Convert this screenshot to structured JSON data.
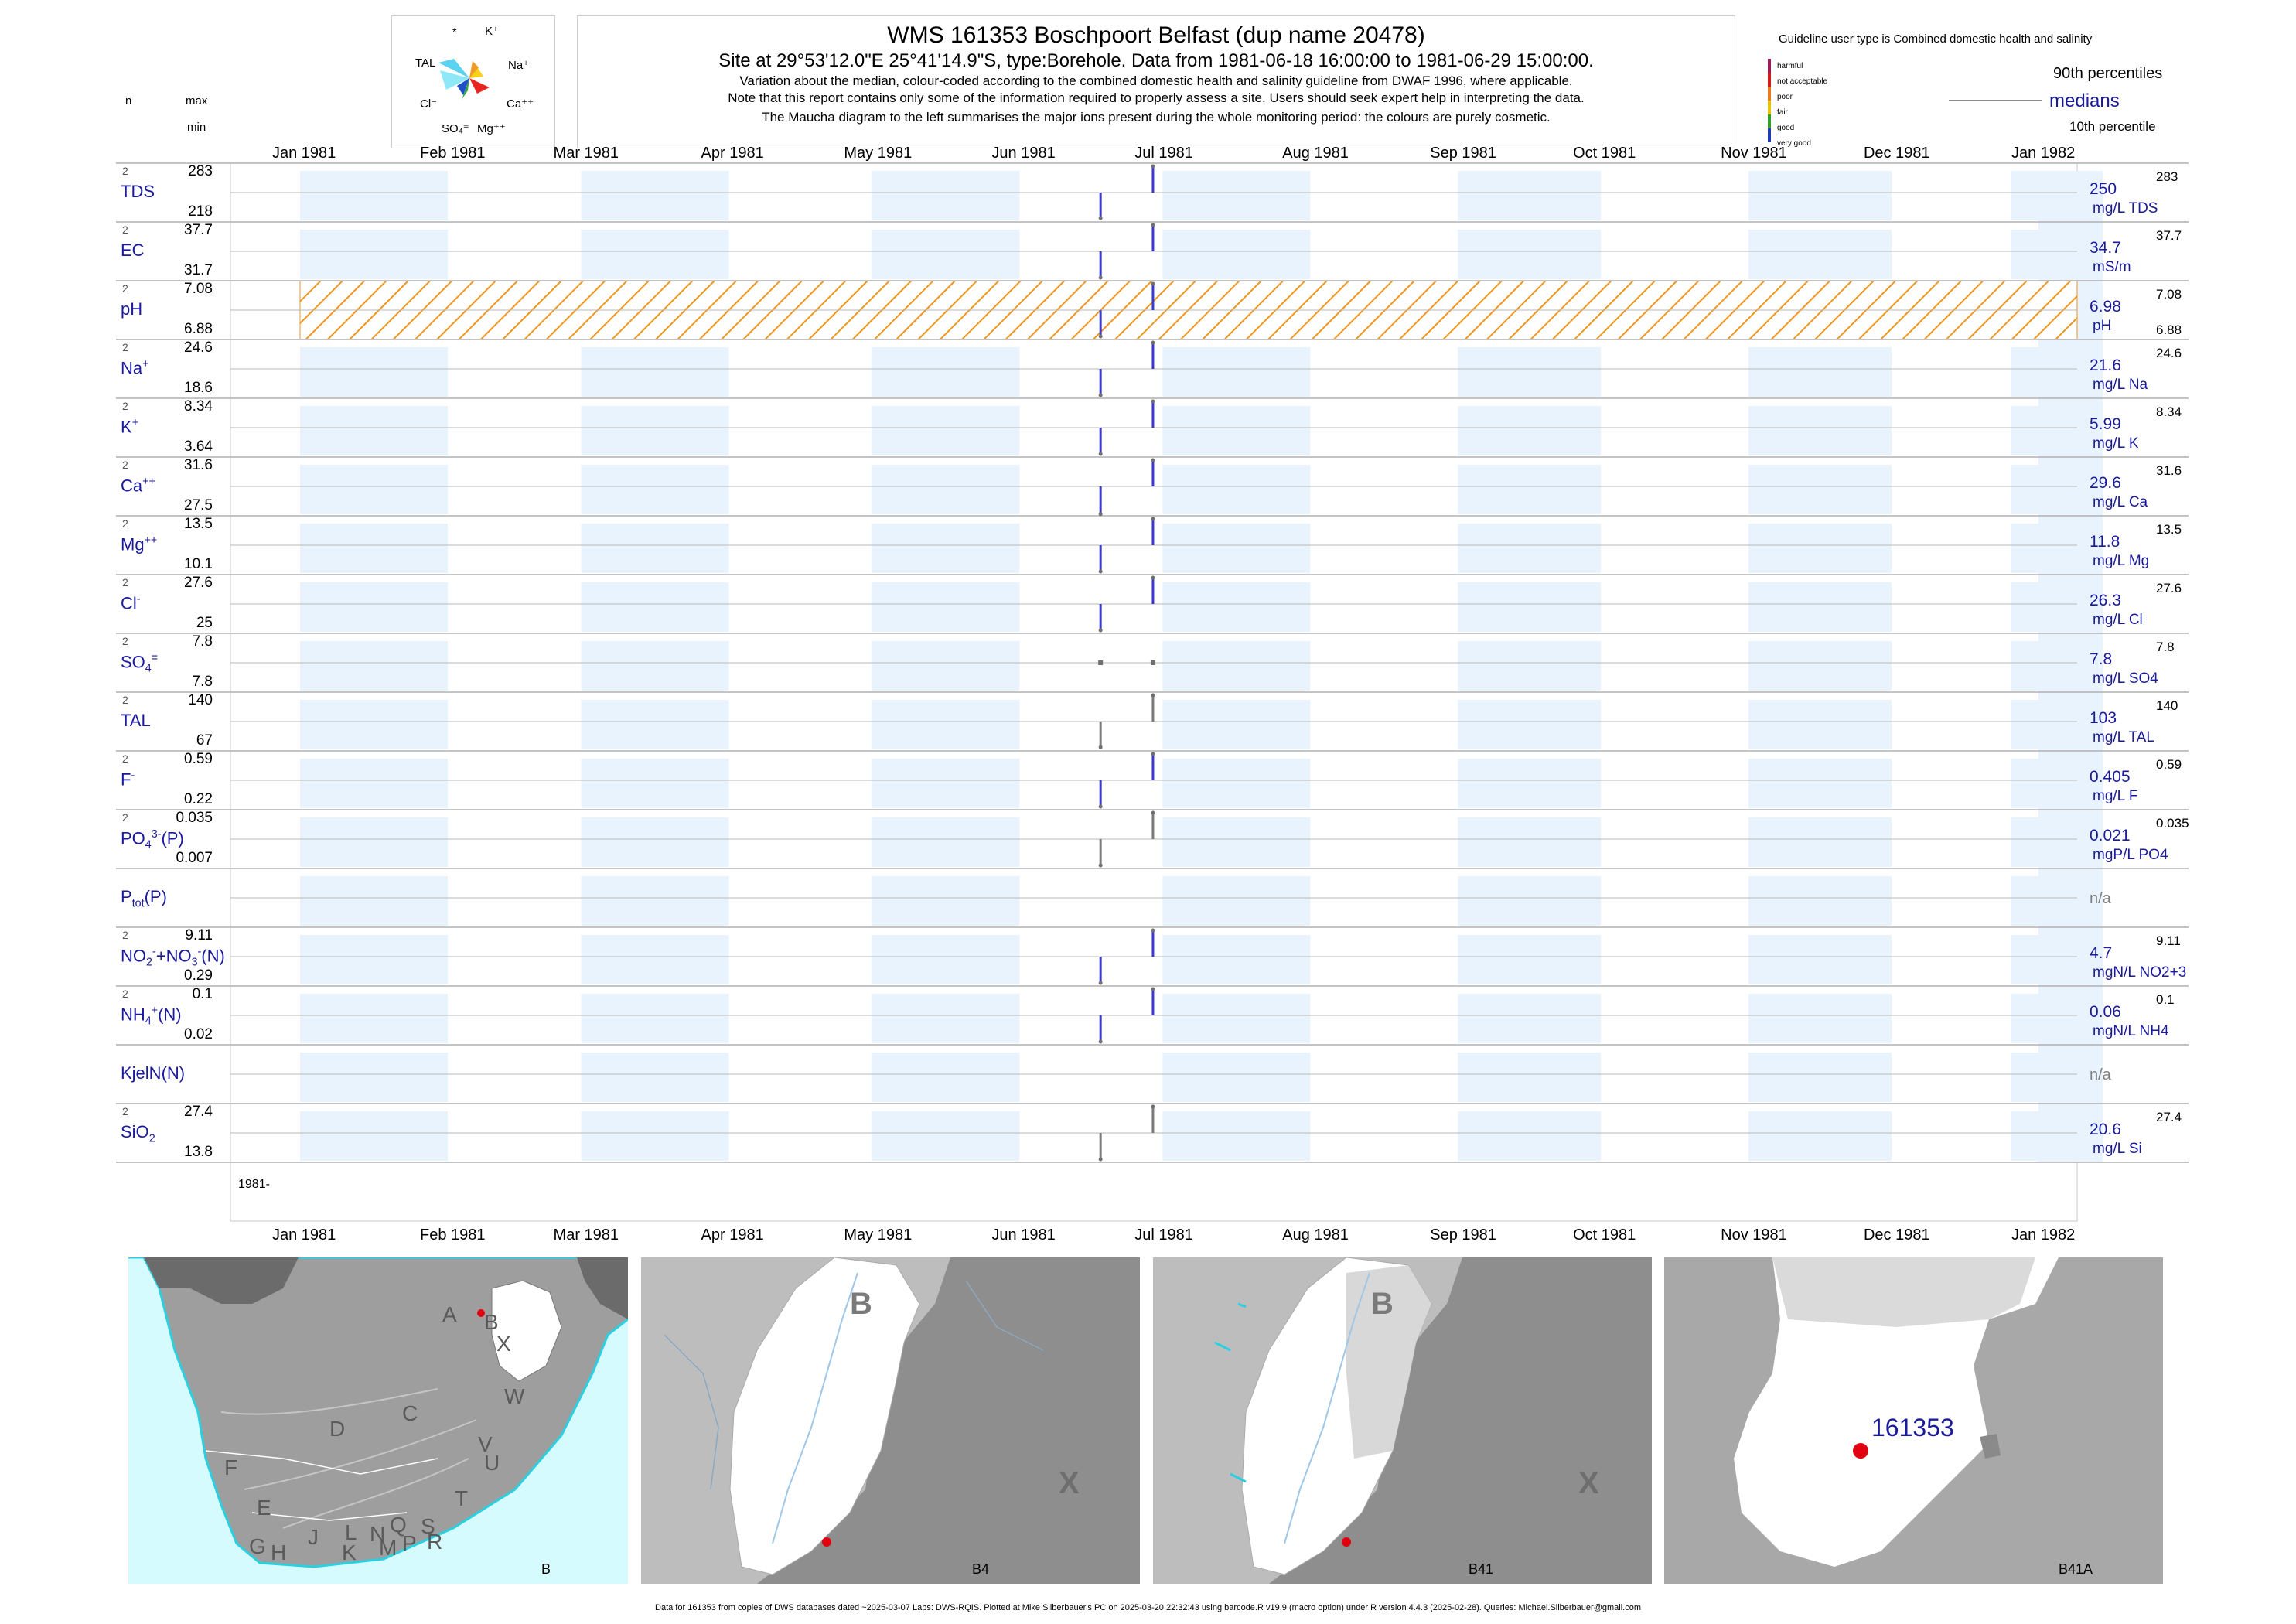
{
  "header": {
    "title": "WMS 161353  Boschpoort Belfast (dup name 20478)",
    "subtitle": "Site at 29°53'12.0\"E 25°41'14.9\"S, type:Borehole.  Data from 1981-06-18 16:00:00 to 1981-06-29 15:00:00.",
    "note1": "Variation about the median,  colour-coded according to the combined domestic health and salinity guideline from DWAF 1996, where applicable.",
    "note2": "Note that this report contains only some of the information required to properly assess a site. Users should seek expert help in interpreting the data.",
    "note3": "The Maucha diagram to the left summarises the major ions present during the whole monitoring period: the colours are purely cosmetic."
  },
  "left_header": {
    "n": "n",
    "max": "max",
    "min": "min"
  },
  "maucha": {
    "labels": {
      "star": "*",
      "k": "K⁺",
      "tal": "TAL",
      "na": "Na⁺",
      "cl": "Cl⁻",
      "ca": "Ca⁺⁺",
      "so4": "SO₄⁼",
      "mg": "Mg⁺⁺"
    }
  },
  "legend": {
    "guideline_title": "Guideline user type is Combined domestic health and salinity",
    "classes": [
      "harmful",
      "not acceptable",
      "poor",
      "fair",
      "good",
      "very good"
    ],
    "class_colors": [
      "#9b1d5e",
      "#d7191c",
      "#f07820",
      "#e6c600",
      "#33a02c",
      "#1f3bb3"
    ],
    "p90": "90th percentiles",
    "medians": "medians",
    "p10": "10th percentile"
  },
  "axis": {
    "months": [
      "Jan 1981",
      "Feb 1981",
      "Mar 1981",
      "Apr 1981",
      "May 1981",
      "Jun 1981",
      "Jul 1981",
      "Aug 1981",
      "Sep 1981",
      "Oct 1981",
      "Nov 1981",
      "Dec 1981",
      "Jan 1982"
    ],
    "year_label": "1981-"
  },
  "chart_data": {
    "type": "line",
    "x_range": [
      "1981-01-01",
      "1982-01-01"
    ],
    "sample_dates": [
      "1981-06-18",
      "1981-06-29"
    ],
    "series": [
      {
        "name": "TDS",
        "n": "2",
        "max": "283",
        "min": "218",
        "median": "250",
        "unit": "mg/L TDS",
        "values": [
          218,
          283
        ]
      },
      {
        "name": "EC",
        "n": "2",
        "max": "37.7",
        "min": "31.7",
        "median": "34.7",
        "unit": "mS/m",
        "values": [
          31.7,
          37.7
        ]
      },
      {
        "name": "pH",
        "n": "2",
        "max": "7.08",
        "min": "6.88",
        "median": "6.98",
        "unit": "pH",
        "values": [
          6.88,
          7.08
        ]
      },
      {
        "name": "Na",
        "n": "2",
        "max": "24.6",
        "min": "18.6",
        "median": "21.6",
        "unit": "mg/L Na",
        "values": [
          18.6,
          24.6
        ]
      },
      {
        "name": "K",
        "n": "2",
        "max": "8.34",
        "min": "3.64",
        "median": "5.99",
        "unit": "mg/L K",
        "values": [
          3.64,
          8.34
        ]
      },
      {
        "name": "Ca",
        "n": "2",
        "max": "31.6",
        "min": "27.5",
        "median": "29.6",
        "unit": "mg/L Ca",
        "values": [
          27.5,
          31.6
        ]
      },
      {
        "name": "Mg",
        "n": "2",
        "max": "13.5",
        "min": "10.1",
        "median": "11.8",
        "unit": "mg/L Mg",
        "values": [
          10.1,
          13.5
        ]
      },
      {
        "name": "Cl",
        "n": "2",
        "max": "27.6",
        "min": "25",
        "median": "26.3",
        "unit": "mg/L Cl",
        "values": [
          25,
          27.6
        ]
      },
      {
        "name": "SO4",
        "n": "2",
        "max": "7.8",
        "min": "7.8",
        "median": "7.8",
        "unit": "mg/L SO4",
        "values": [
          7.8,
          7.8
        ]
      },
      {
        "name": "TAL",
        "n": "2",
        "max": "140",
        "min": "67",
        "median": "103",
        "unit": "mg/L TAL",
        "values": [
          67,
          140
        ]
      },
      {
        "name": "F",
        "n": "2",
        "max": "0.59",
        "min": "0.22",
        "median": "0.405",
        "unit": "mg/L F",
        "values": [
          0.22,
          0.59
        ]
      },
      {
        "name": "PO4(P)",
        "n": "2",
        "max": "0.035",
        "min": "0.007",
        "median": "0.021",
        "unit": "mgP/L PO4",
        "values": [
          0.007,
          0.035
        ]
      },
      {
        "name": "Ptot(P)",
        "n": "",
        "max": "",
        "min": "",
        "median": "n/a",
        "unit": "",
        "values": []
      },
      {
        "name": "NO2+NO3(N)",
        "n": "2",
        "max": "9.11",
        "min": "0.29",
        "median": "4.7",
        "unit": "mgN/L NO2+3",
        "values": [
          0.29,
          9.11
        ]
      },
      {
        "name": "NH4(N)",
        "n": "2",
        "max": "0.1",
        "min": "0.02",
        "median": "0.06",
        "unit": "mgN/L NH4",
        "values": [
          0.02,
          0.1
        ]
      },
      {
        "name": "KjelN(N)",
        "n": "",
        "max": "",
        "min": "",
        "median": "n/a",
        "unit": "",
        "values": []
      },
      {
        "name": "SiO2",
        "n": "2",
        "max": "27.4",
        "min": "13.8",
        "median": "20.6",
        "unit": "mg/L Si",
        "values": [
          13.8,
          27.4
        ]
      }
    ]
  },
  "maps": {
    "map1": {
      "caption": "B",
      "region_letters": [
        "A",
        "B",
        "X",
        "C",
        "W",
        "D",
        "V",
        "U",
        "F",
        "T",
        "E",
        "L",
        "N",
        "Q",
        "S",
        "G",
        "H",
        "J",
        "K",
        "M",
        "P",
        "R"
      ]
    },
    "map2": {
      "caption": "B4",
      "letters": [
        "B",
        "X"
      ]
    },
    "map3": {
      "caption": "B41",
      "letters": [
        "B",
        "X"
      ]
    },
    "map4": {
      "caption": "B41A",
      "site_label": "161353"
    }
  },
  "footer": "Data for 161353 from copies of DWS databases dated ~2025-03-07 Labs: DWS-RQIS. Plotted at Mike Silberbauer's PC on 2025-03-20 22:32:43 using barcode.R v19.9 (macro option) under R version 4.4.3 (2025-02-28). Queries: Michael.Silberbauer@gmail.com"
}
